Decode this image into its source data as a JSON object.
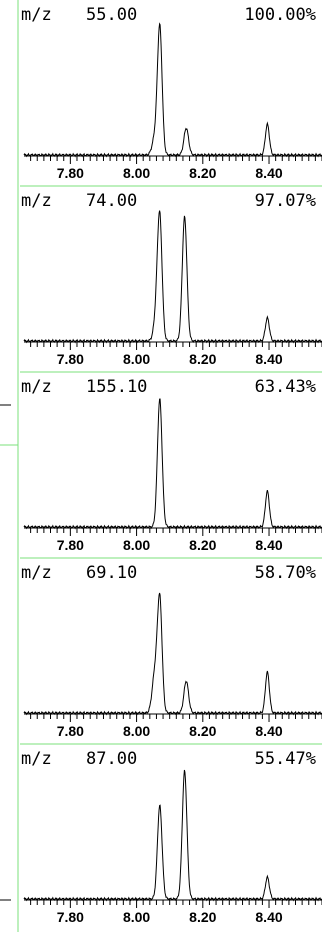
{
  "colors": {
    "separator": "#7be07b",
    "trace": "#000000",
    "background": "#ffffff"
  },
  "chart_data": [
    {
      "type": "line",
      "mz_label": "m/z",
      "mz": "55.00",
      "percent": "100.00%",
      "relative_height": 1.0,
      "xlim": [
        7.66,
        8.56
      ],
      "ticks": [
        "7.80",
        "8.00",
        "8.20",
        "8.40"
      ],
      "peaks": [
        {
          "x": 8.055,
          "h": 0.13,
          "w": 0.008
        },
        {
          "x": 8.07,
          "h": 1.0,
          "w": 0.007
        },
        {
          "x": 8.15,
          "h": 0.21,
          "w": 0.007
        },
        {
          "x": 8.395,
          "h": 0.24,
          "w": 0.006
        }
      ]
    },
    {
      "type": "line",
      "mz_label": "m/z",
      "mz": "74.00",
      "percent": "97.07%",
      "relative_height": 1.0,
      "xlim": [
        7.66,
        8.56
      ],
      "ticks": [
        "7.80",
        "8.00",
        "8.20",
        "8.40"
      ],
      "peaks": [
        {
          "x": 8.06,
          "h": 0.18,
          "w": 0.008
        },
        {
          "x": 8.07,
          "h": 0.93,
          "w": 0.007
        },
        {
          "x": 8.145,
          "h": 0.97,
          "w": 0.007
        },
        {
          "x": 8.395,
          "h": 0.18,
          "w": 0.006
        }
      ]
    },
    {
      "type": "line",
      "mz_label": "m/z",
      "mz": "155.10",
      "percent": "63.43%",
      "relative_height": 1.0,
      "xlim": [
        7.66,
        8.56
      ],
      "ticks": [
        "7.80",
        "8.00",
        "8.20",
        "8.40"
      ],
      "peaks": [
        {
          "x": 8.07,
          "h": 1.0,
          "w": 0.007
        },
        {
          "x": 8.395,
          "h": 0.28,
          "w": 0.006
        }
      ]
    },
    {
      "type": "line",
      "mz_label": "m/z",
      "mz": "69.10",
      "percent": "58.70%",
      "relative_height": 1.0,
      "xlim": [
        7.66,
        8.56
      ],
      "ticks": [
        "7.80",
        "8.00",
        "8.20",
        "8.40"
      ],
      "peaks": [
        {
          "x": 8.055,
          "h": 0.3,
          "w": 0.008
        },
        {
          "x": 8.07,
          "h": 0.88,
          "w": 0.007
        },
        {
          "x": 8.15,
          "h": 0.25,
          "w": 0.007
        },
        {
          "x": 8.395,
          "h": 0.32,
          "w": 0.006
        }
      ]
    },
    {
      "type": "line",
      "mz_label": "m/z",
      "mz": "87.00",
      "percent": "55.47%",
      "relative_height": 1.0,
      "xlim": [
        7.66,
        8.56
      ],
      "ticks": [
        "7.80",
        "8.00",
        "8.20",
        "8.40"
      ],
      "peaks": [
        {
          "x": 8.07,
          "h": 0.73,
          "w": 0.007
        },
        {
          "x": 8.145,
          "h": 1.0,
          "w": 0.007
        },
        {
          "x": 8.395,
          "h": 0.17,
          "w": 0.006
        }
      ]
    }
  ]
}
